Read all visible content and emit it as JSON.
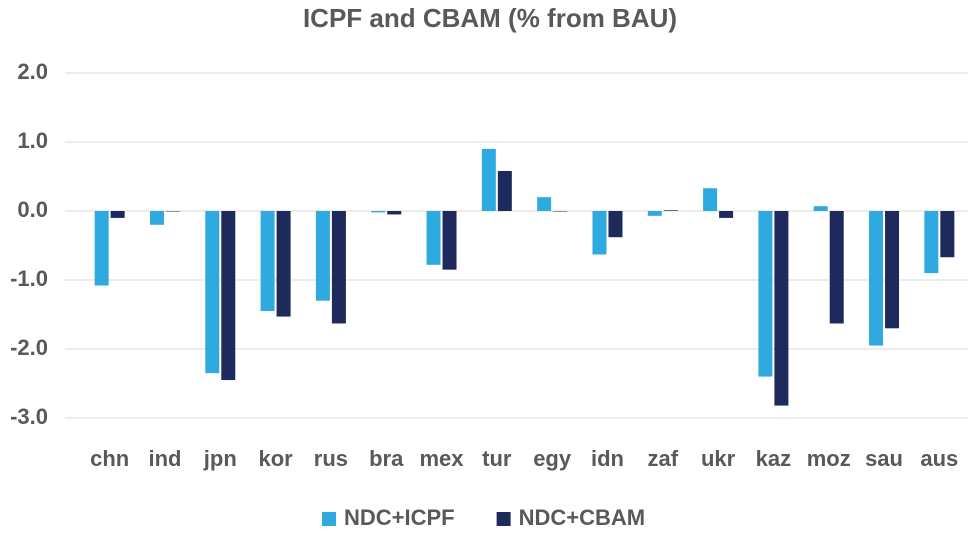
{
  "chart_data": {
    "type": "bar",
    "title": "ICPF and CBAM (% from BAU)",
    "categories": [
      "chn",
      "ind",
      "jpn",
      "kor",
      "rus",
      "bra",
      "mex",
      "tur",
      "egy",
      "idn",
      "zaf",
      "ukr",
      "kaz",
      "moz",
      "sau",
      "aus"
    ],
    "series": [
      {
        "name": "NDC+ICPF",
        "color": "#2eaae1",
        "values": [
          -1.08,
          -0.2,
          -2.35,
          -1.45,
          -1.3,
          -0.02,
          -0.78,
          0.9,
          0.2,
          -0.63,
          -0.07,
          0.33,
          -2.4,
          0.07,
          -1.95,
          -0.9
        ]
      },
      {
        "name": "NDC+CBAM",
        "color": "#1f2a5c",
        "values": [
          -0.1,
          0,
          -2.45,
          -1.53,
          -1.63,
          -0.05,
          -0.85,
          0.58,
          0,
          -0.38,
          0.01,
          -0.1,
          -2.82,
          -1.63,
          -1.7,
          -0.67
        ]
      }
    ],
    "ylim": [
      -3,
      2
    ],
    "yticks": [
      {
        "value": -3,
        "label": "-3.0"
      },
      {
        "value": -2,
        "label": "-2.0"
      },
      {
        "value": -1,
        "label": "-1.0"
      },
      {
        "value": 0,
        "label": "0.0"
      },
      {
        "value": 1,
        "label": "1.0"
      },
      {
        "value": 2,
        "label": "2.0"
      }
    ],
    "grid": true,
    "legend": "bottom"
  }
}
